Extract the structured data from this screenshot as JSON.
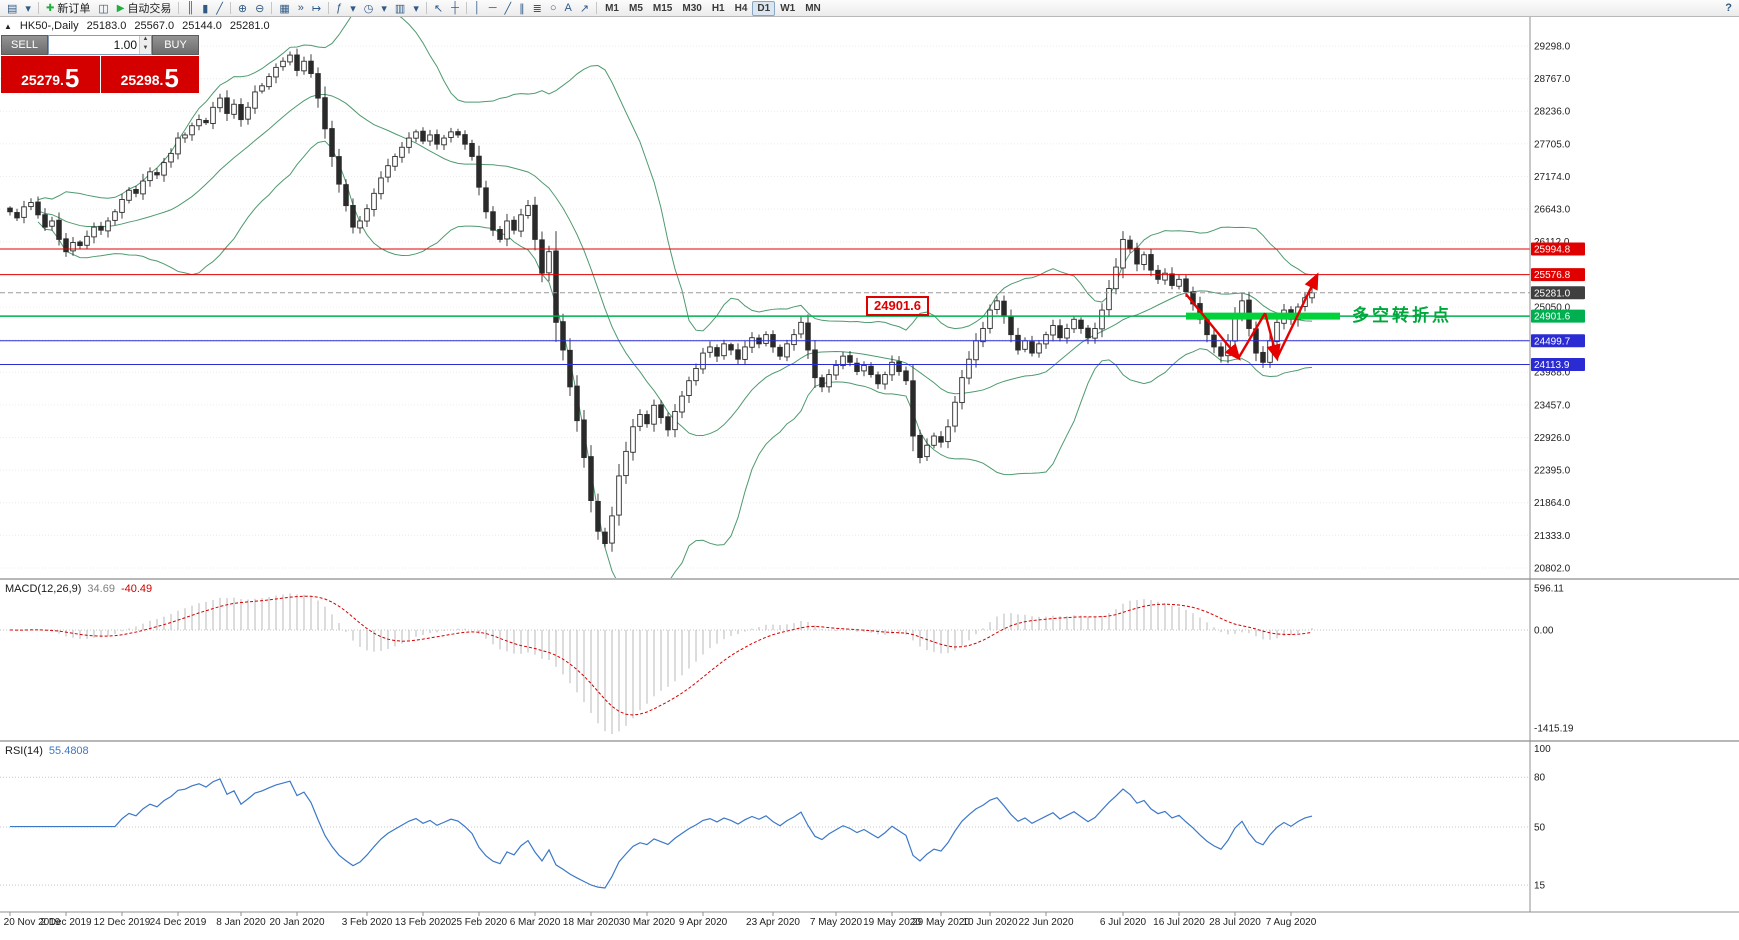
{
  "toolbar": {
    "items": [
      {
        "t": "icon",
        "name": "new-chart",
        "g": "▤"
      },
      {
        "t": "icon",
        "name": "profiles-dropdown",
        "g": "▾"
      },
      {
        "t": "sep"
      },
      {
        "t": "button",
        "name": "new-order-button",
        "icon": "✚",
        "icon_color": "#1fae3f",
        "label": "新订单"
      },
      {
        "t": "icon",
        "name": "metaeditor",
        "g": "◫"
      },
      {
        "t": "button",
        "name": "autotrading-button",
        "icon": "▶",
        "icon_color": "#1fae3f",
        "label": "自动交易"
      },
      {
        "t": "sep"
      },
      {
        "t": "icon",
        "name": "bar-chart-type",
        "g": "║"
      },
      {
        "t": "icon",
        "name": "candlestick-chart-type",
        "g": "▮"
      },
      {
        "t": "icon",
        "name": "line-chart-type",
        "g": "╱"
      },
      {
        "t": "sep"
      },
      {
        "t": "icon",
        "name": "zoom-in",
        "g": "⊕"
      },
      {
        "t": "icon",
        "name": "zoom-out",
        "g": "⊖"
      },
      {
        "t": "sep"
      },
      {
        "t": "icon",
        "name": "tile-windows",
        "g": "▦"
      },
      {
        "t": "icon",
        "name": "auto-scroll",
        "g": "»"
      },
      {
        "t": "icon",
        "name": "chart-shift",
        "g": "↦"
      },
      {
        "t": "sep"
      },
      {
        "t": "icon",
        "name": "indicators",
        "g": "ƒ"
      },
      {
        "t": "icon",
        "name": "indicators-dropdown",
        "g": "▾"
      },
      {
        "t": "icon",
        "name": "periods",
        "g": "◷"
      },
      {
        "t": "icon",
        "name": "periods-dropdown",
        "g": "▾"
      },
      {
        "t": "icon",
        "name": "templates",
        "g": "▥"
      },
      {
        "t": "icon",
        "name": "templates-dropdown",
        "g": "▾"
      },
      {
        "t": "sep"
      },
      {
        "t": "icon",
        "name": "cursor-tool",
        "g": "↖"
      },
      {
        "t": "icon",
        "name": "crosshair-tool",
        "g": "┼"
      },
      {
        "t": "sep"
      },
      {
        "t": "icon",
        "name": "vertical-line-tool",
        "g": "│"
      },
      {
        "t": "icon",
        "name": "horizontal-line-tool",
        "g": "─"
      },
      {
        "t": "icon",
        "name": "trendline-tool",
        "g": "╱"
      },
      {
        "t": "icon",
        "name": "channel-tool",
        "g": "∥"
      },
      {
        "t": "icon",
        "name": "fibonacci-tool",
        "g": "≣"
      },
      {
        "t": "icon",
        "name": "shapes-tool",
        "g": "○"
      },
      {
        "t": "icon",
        "name": "text-tool",
        "g": "A"
      },
      {
        "t": "icon",
        "name": "arrows-tool",
        "g": "↗"
      },
      {
        "t": "sep"
      },
      {
        "t": "tfgroup"
      },
      {
        "t": "spacer"
      },
      {
        "t": "icon",
        "name": "help-button",
        "g": "?"
      }
    ],
    "timeframes": [
      "M1",
      "M5",
      "M15",
      "M30",
      "H1",
      "H4",
      "D1",
      "W1",
      "MN"
    ],
    "active_timeframe": "D1"
  },
  "chart": {
    "symbol_label": "HK50-,Daily",
    "open": "25183.0",
    "high": "25567.0",
    "low": "25144.0",
    "close": "25281.0",
    "trade_panel": {
      "sell_label": "SELL",
      "buy_label": "BUY",
      "volume": "1.00",
      "sell_price": "25279.",
      "sell_price_big": "5",
      "buy_price": "25298.",
      "buy_price_big": "5"
    },
    "annotations": {
      "price_box": "24901.6",
      "turning_point": "多空转折点"
    }
  },
  "macd_panel": {
    "name": "MACD(12,26,9)",
    "value": "34.69",
    "signal_value": "-40.49",
    "axis": [
      "596.11",
      "0.00",
      "-1415.19"
    ]
  },
  "rsi_panel": {
    "name": "RSI(14)",
    "value": "55.4808",
    "axis": [
      "100",
      "80",
      "50",
      "15"
    ],
    "levels": [
      80,
      50,
      15
    ]
  },
  "chart_data": {
    "type": "candlestick",
    "symbol": "HK50-",
    "timeframe": "Daily",
    "closes": [
      26600,
      26500,
      26680,
      26750,
      26550,
      26350,
      26450,
      26150,
      25950,
      26100,
      26050,
      26200,
      26350,
      26300,
      26450,
      26600,
      26800,
      26950,
      26900,
      27100,
      27250,
      27200,
      27400,
      27550,
      27800,
      27850,
      28000,
      28100,
      28050,
      28300,
      28450,
      28200,
      28350,
      28100,
      28300,
      28550,
      28650,
      28800,
      28950,
      29050,
      29150,
      28900,
      29050,
      28850,
      28450,
      27950,
      27500,
      27050,
      26700,
      26350,
      26450,
      26650,
      26900,
      27150,
      27350,
      27500,
      27650,
      27800,
      27900,
      27750,
      27850,
      27700,
      27800,
      27900,
      27850,
      27700,
      27500,
      27000,
      26600,
      26300,
      26150,
      26450,
      26300,
      26550,
      26700,
      26150,
      25600,
      25950,
      24800,
      24350,
      23750,
      23200,
      22600,
      21900,
      21400,
      21200,
      21650,
      22300,
      22700,
      23100,
      23300,
      23150,
      23450,
      23250,
      23050,
      23350,
      23600,
      23850,
      24050,
      24300,
      24400,
      24250,
      24450,
      24350,
      24200,
      24400,
      24550,
      24450,
      24600,
      24400,
      24250,
      24450,
      24600,
      24800,
      24350,
      23900,
      23750,
      23950,
      24100,
      24250,
      24150,
      24000,
      24100,
      23950,
      23800,
      23950,
      24150,
      24000,
      23850,
      22950,
      22600,
      22800,
      22950,
      22850,
      23100,
      23500,
      23900,
      24200,
      24500,
      24700,
      25000,
      25150,
      24900,
      24600,
      24350,
      24500,
      24300,
      24450,
      24600,
      24750,
      24550,
      24700,
      24850,
      24700,
      24550,
      24700,
      25000,
      25350,
      25700,
      26150,
      26000,
      25750,
      25900,
      25650,
      25500,
      25600,
      25400,
      25500,
      25300,
      25100,
      24850,
      24600,
      24400,
      24250,
      24500,
      24900,
      25150,
      24700,
      24300,
      24150,
      24500,
      24800,
      25000,
      24850,
      25050,
      25200,
      25281
    ],
    "x_labels": [
      [
        "20 Nov 2019",
        0
      ],
      [
        "2 Dec 2019",
        8
      ],
      [
        "12 Dec 2019",
        16
      ],
      [
        "24 Dec 2019",
        24
      ],
      [
        "8 Jan 2020",
        33
      ],
      [
        "20 Jan 2020",
        41
      ],
      [
        "3 Feb 2020",
        51
      ],
      [
        "13 Feb 2020",
        59
      ],
      [
        "25 Feb 2020",
        67
      ],
      [
        "6 Mar 2020",
        75
      ],
      [
        "18 Mar 2020",
        83
      ],
      [
        "30 Mar 2020",
        91
      ],
      [
        "9 Apr 2020",
        99
      ],
      [
        "23 Apr 2020",
        109
      ],
      [
        "7 May 2020",
        118
      ],
      [
        "19 May 2020",
        126
      ],
      [
        "29 May 2020",
        133
      ],
      [
        "10 Jun 2020",
        140
      ],
      [
        "22 Jun 2020",
        148
      ],
      [
        "6 Jul 2020",
        159
      ],
      [
        "16 Jul 2020",
        167
      ],
      [
        "28 Jul 2020",
        175
      ],
      [
        "7 Aug 2020",
        183
      ]
    ],
    "price_axis": {
      "labels": [
        "29298.0",
        "28767.0",
        "28236.0",
        "27705.0",
        "27174.0",
        "26643.0",
        "26112.0",
        "25581.0",
        "25050.0",
        "24519.0",
        "23988.0",
        "23457.0",
        "22926.0",
        "22395.0",
        "21864.0",
        "21333.0",
        "20802.0"
      ],
      "max": 29298.0,
      "min": 20802.0,
      "tick_step": 531.0
    },
    "levels": [
      {
        "price": 25994.8,
        "line_color": "#e00000",
        "tag_color": "#e00000",
        "style": "solid"
      },
      {
        "price": 25576.8,
        "line_color": "#e00000",
        "tag_color": "#e00000",
        "style": "solid"
      },
      {
        "price": 25281.0,
        "line_color": "#9a9a9a",
        "tag_color": "#3f3f3f",
        "style": "dashed"
      },
      {
        "price": 24901.6,
        "line_color": "#00b050",
        "tag_color": "#00b050",
        "style": "solid"
      },
      {
        "price": 24499.7,
        "line_color": "#2b2bd4",
        "tag_color": "#2b2bd4",
        "style": "solid"
      },
      {
        "price": 24113.9,
        "line_color": "#2b2bd4",
        "tag_color": "#2b2bd4",
        "style": "solid"
      }
    ],
    "thick_green_segment": {
      "price": 24901.6,
      "from_index": 168,
      "to_index": 190,
      "color": "#00d23c"
    },
    "arrow_color": "#e60000",
    "arrows": [
      {
        "from": [
          168,
          25260
        ],
        "to": [
          175.5,
          24220
        ],
        "head": true
      },
      {
        "from": [
          175.5,
          24220
        ],
        "to": [
          179.3,
          24950
        ],
        "head": false
      },
      {
        "from": [
          179.3,
          24950
        ],
        "to": [
          181,
          24220
        ],
        "head": true
      },
      {
        "from": [
          181,
          24220
        ],
        "to": [
          186.7,
          25560
        ],
        "head": true
      }
    ],
    "bollinger": {
      "period": 20,
      "deviations": 2,
      "color": "#4e9a6f"
    },
    "macd": {
      "fast": 12,
      "slow": 26,
      "signal": 9,
      "histogram_color": "#b8b8b8",
      "signal_color": "#d40000"
    },
    "rsi": {
      "period": 14,
      "color": "#3c78c8"
    }
  }
}
